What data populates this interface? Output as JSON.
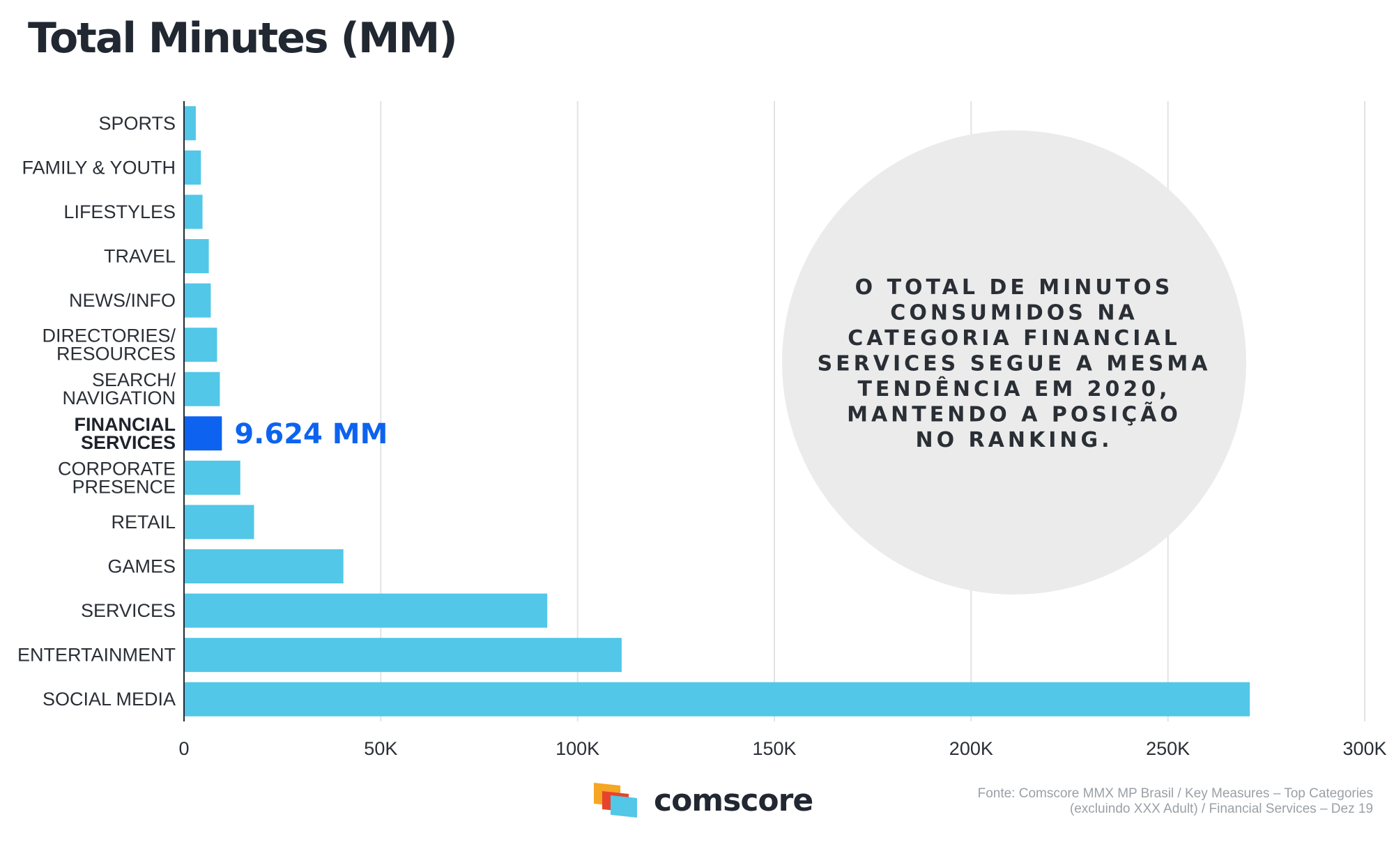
{
  "chart_data": {
    "type": "bar",
    "orientation": "horizontal",
    "title": "Total Minutes (MM)",
    "categories": [
      [
        "SPORTS"
      ],
      [
        "FAMILY & YOUTH"
      ],
      [
        "LIFESTYLES"
      ],
      [
        "TRAVEL"
      ],
      [
        "NEWS/INFO"
      ],
      [
        "DIRECTORIES/",
        "RESOURCES"
      ],
      [
        "SEARCH/",
        "NAVIGATION"
      ],
      [
        "FINANCIAL",
        "SERVICES"
      ],
      [
        "CORPORATE",
        "PRESENCE"
      ],
      [
        "RETAIL"
      ],
      [
        "GAMES"
      ],
      [
        "SERVICES"
      ],
      [
        "ENTERTAINMENT"
      ],
      [
        "SOCIAL MEDIA"
      ]
    ],
    "values": [
      3000,
      4300,
      4700,
      6300,
      6800,
      8400,
      9100,
      9624,
      14300,
      17800,
      40500,
      92300,
      111200,
      270800
    ],
    "highlight_index": 7,
    "highlight_label": "9.624 MM",
    "xlim": [
      0,
      300000
    ],
    "xticks": [
      0,
      50000,
      100000,
      150000,
      200000,
      250000,
      300000
    ],
    "xtick_labels": [
      "0",
      "50K",
      "100K",
      "150K",
      "200K",
      "250K",
      "300K"
    ],
    "grid": true,
    "colors": {
      "bar": "#52c7e8",
      "highlight": "#0d63ef",
      "grid": "#e3e3e3",
      "callout_bg": "#ebebeb"
    }
  },
  "callout": {
    "lines": [
      "O TOTAL DE MINUTOS",
      "CONSUMIDOS NA",
      "CATEGORIA FINANCIAL",
      "SERVICES SEGUE A MESMA",
      "TENDÊNCIA EM 2020,",
      "MANTENDO A POSIÇÃO",
      "NO RANKING."
    ]
  },
  "brand": {
    "name": "comscore",
    "logo_icon": "comscore-logo-icon"
  },
  "source": {
    "line1": "Fonte: Comscore MMX MP Brasil / Key Measures – Top Categories",
    "line2": "(excluindo XXX Adult) / Financial Services – Dez 19"
  }
}
